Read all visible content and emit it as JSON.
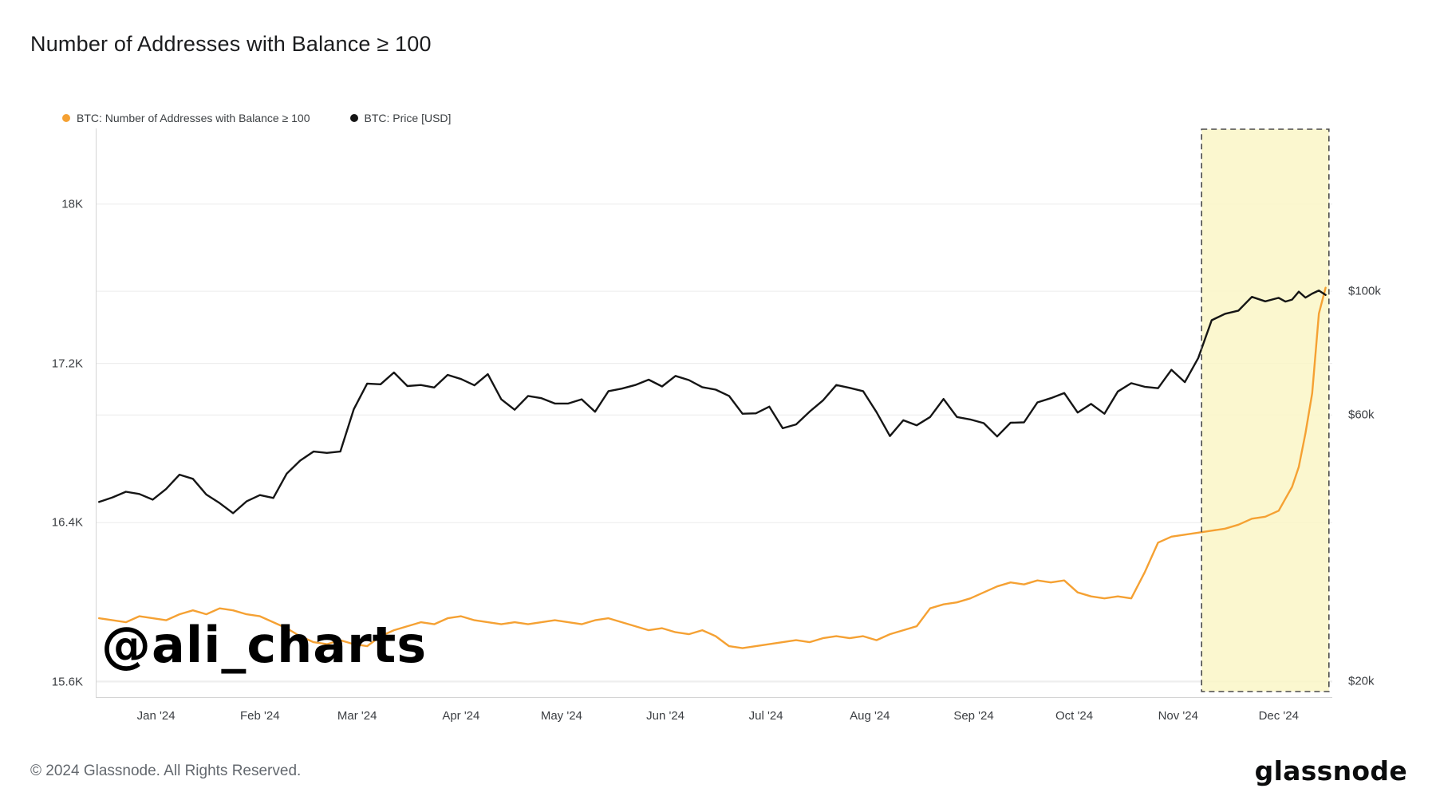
{
  "page": {
    "title": "Number of Addresses with Balance ≥ 100",
    "watermark": "@ali_charts",
    "footer_copyright": "© 2024 Glassnode. All Rights Reserved.",
    "brand": "glassnode"
  },
  "chart_data": {
    "type": "line",
    "title": "Number of Addresses with Balance ≥ 100",
    "grid_color": "#ececec",
    "axis_line_color": "#d4d4d4",
    "x_domain": [
      "2023-12-14",
      "2024-12-17"
    ],
    "x_ticks": [
      {
        "label": "Jan '24",
        "date": "2024-01-01"
      },
      {
        "label": "Feb '24",
        "date": "2024-02-01"
      },
      {
        "label": "Mar '24",
        "date": "2024-03-01"
      },
      {
        "label": "Apr '24",
        "date": "2024-04-01"
      },
      {
        "label": "May '24",
        "date": "2024-05-01"
      },
      {
        "label": "Jun '24",
        "date": "2024-06-01"
      },
      {
        "label": "Jul '24",
        "date": "2024-07-01"
      },
      {
        "label": "Aug '24",
        "date": "2024-08-01"
      },
      {
        "label": "Sep '24",
        "date": "2024-09-01"
      },
      {
        "label": "Oct '24",
        "date": "2024-10-01"
      },
      {
        "label": "Nov '24",
        "date": "2024-11-01"
      },
      {
        "label": "Dec '24",
        "date": "2024-12-01"
      }
    ],
    "left_axis": {
      "scale": "linear",
      "unit": "addresses (thousands)",
      "domain": [
        15.52,
        18.38
      ],
      "ticks": [
        {
          "label": "18K",
          "value": 18.0
        },
        {
          "label": "17.2K",
          "value": 17.2
        },
        {
          "label": "16.4K",
          "value": 16.4
        },
        {
          "label": "15.6K",
          "value": 15.6
        }
      ]
    },
    "right_axis": {
      "scale": "log",
      "unit": "USD (thousands)",
      "domain": [
        18.66,
        195.8
      ],
      "ticks": [
        {
          "label": "$100k",
          "value": 100
        },
        {
          "label": "$60k",
          "value": 60
        },
        {
          "label": "$20k",
          "value": 20
        }
      ]
    },
    "highlight_region": {
      "start": "2024-11-08",
      "end": "2024-12-16",
      "fill": "rgba(250,246,199,0.85)",
      "border_color": "#4a4a4a"
    },
    "dates": [
      "2023-12-15",
      "2023-12-19",
      "2023-12-23",
      "2023-12-27",
      "2023-12-31",
      "2024-01-04",
      "2024-01-08",
      "2024-01-12",
      "2024-01-16",
      "2024-01-20",
      "2024-01-24",
      "2024-01-28",
      "2024-02-01",
      "2024-02-05",
      "2024-02-09",
      "2024-02-13",
      "2024-02-17",
      "2024-02-21",
      "2024-02-25",
      "2024-02-29",
      "2024-03-04",
      "2024-03-08",
      "2024-03-12",
      "2024-03-16",
      "2024-03-20",
      "2024-03-24",
      "2024-03-28",
      "2024-04-01",
      "2024-04-05",
      "2024-04-09",
      "2024-04-13",
      "2024-04-17",
      "2024-04-21",
      "2024-04-25",
      "2024-04-29",
      "2024-05-03",
      "2024-05-07",
      "2024-05-11",
      "2024-05-15",
      "2024-05-19",
      "2024-05-23",
      "2024-05-27",
      "2024-05-31",
      "2024-06-04",
      "2024-06-08",
      "2024-06-12",
      "2024-06-16",
      "2024-06-20",
      "2024-06-24",
      "2024-06-28",
      "2024-07-02",
      "2024-07-06",
      "2024-07-10",
      "2024-07-14",
      "2024-07-18",
      "2024-07-22",
      "2024-07-26",
      "2024-07-30",
      "2024-08-03",
      "2024-08-07",
      "2024-08-11",
      "2024-08-15",
      "2024-08-19",
      "2024-08-23",
      "2024-08-27",
      "2024-08-31",
      "2024-09-04",
      "2024-09-08",
      "2024-09-12",
      "2024-09-16",
      "2024-09-20",
      "2024-09-24",
      "2024-09-28",
      "2024-10-02",
      "2024-10-06",
      "2024-10-10",
      "2024-10-14",
      "2024-10-18",
      "2024-10-22",
      "2024-10-26",
      "2024-10-30",
      "2024-11-03",
      "2024-11-07",
      "2024-11-11",
      "2024-11-15",
      "2024-11-19",
      "2024-11-23",
      "2024-11-27",
      "2024-12-01",
      "2024-12-03",
      "2024-12-05",
      "2024-12-07",
      "2024-12-09",
      "2024-12-11",
      "2024-12-13",
      "2024-12-15"
    ],
    "series": [
      {
        "name": "BTC: Number of Addresses with Balance ≥ 100",
        "axis": "left",
        "color": "#F5A133",
        "values": [
          15.92,
          15.91,
          15.9,
          15.93,
          15.92,
          15.91,
          15.94,
          15.96,
          15.94,
          15.97,
          15.96,
          15.94,
          15.93,
          15.9,
          15.87,
          15.83,
          15.8,
          15.79,
          15.81,
          15.79,
          15.78,
          15.83,
          15.86,
          15.88,
          15.9,
          15.89,
          15.92,
          15.93,
          15.91,
          15.9,
          15.89,
          15.9,
          15.89,
          15.9,
          15.91,
          15.9,
          15.89,
          15.91,
          15.92,
          15.9,
          15.88,
          15.86,
          15.87,
          15.85,
          15.84,
          15.86,
          15.83,
          15.78,
          15.77,
          15.78,
          15.79,
          15.8,
          15.81,
          15.8,
          15.82,
          15.83,
          15.82,
          15.83,
          15.81,
          15.84,
          15.86,
          15.88,
          15.97,
          15.99,
          16.0,
          16.02,
          16.05,
          16.08,
          16.1,
          16.09,
          16.11,
          16.1,
          16.11,
          16.05,
          16.03,
          16.02,
          16.03,
          16.02,
          16.15,
          16.3,
          16.33,
          16.34,
          16.35,
          16.36,
          16.37,
          16.39,
          16.42,
          16.43,
          16.46,
          16.52,
          16.58,
          16.68,
          16.85,
          17.05,
          17.45,
          17.58
        ]
      },
      {
        "name": "BTC: Price [USD]",
        "axis": "right",
        "color": "#151515",
        "values": [
          41.9,
          42.7,
          43.7,
          43.3,
          42.3,
          44.2,
          46.9,
          46.1,
          43.2,
          41.7,
          40.0,
          42.0,
          43.1,
          42.6,
          47.1,
          49.7,
          51.6,
          51.3,
          51.6,
          61.4,
          68.3,
          68.1,
          71.5,
          67.6,
          67.9,
          67.2,
          70.8,
          69.6,
          67.8,
          71.0,
          64.0,
          61.3,
          64.9,
          64.3,
          62.9,
          62.9,
          64.0,
          60.8,
          66.2,
          66.9,
          67.9,
          69.4,
          67.5,
          70.5,
          69.3,
          67.3,
          66.6,
          64.9,
          60.3,
          60.4,
          62.1,
          56.8,
          57.7,
          60.8,
          63.7,
          67.9,
          67.1,
          66.2,
          60.7,
          55.0,
          58.7,
          57.5,
          59.5,
          64.1,
          59.5,
          58.9,
          58.0,
          54.9,
          58.1,
          58.2,
          63.2,
          64.3,
          65.7,
          60.6,
          62.8,
          60.3,
          66.1,
          68.4,
          67.4,
          67.0,
          72.3,
          68.7,
          75.9,
          88.7,
          91.1,
          92.3,
          97.7,
          95.9,
          97.3,
          95.8,
          96.6,
          99.8,
          97.4,
          99.0,
          100.3,
          98.5
        ]
      }
    ]
  }
}
